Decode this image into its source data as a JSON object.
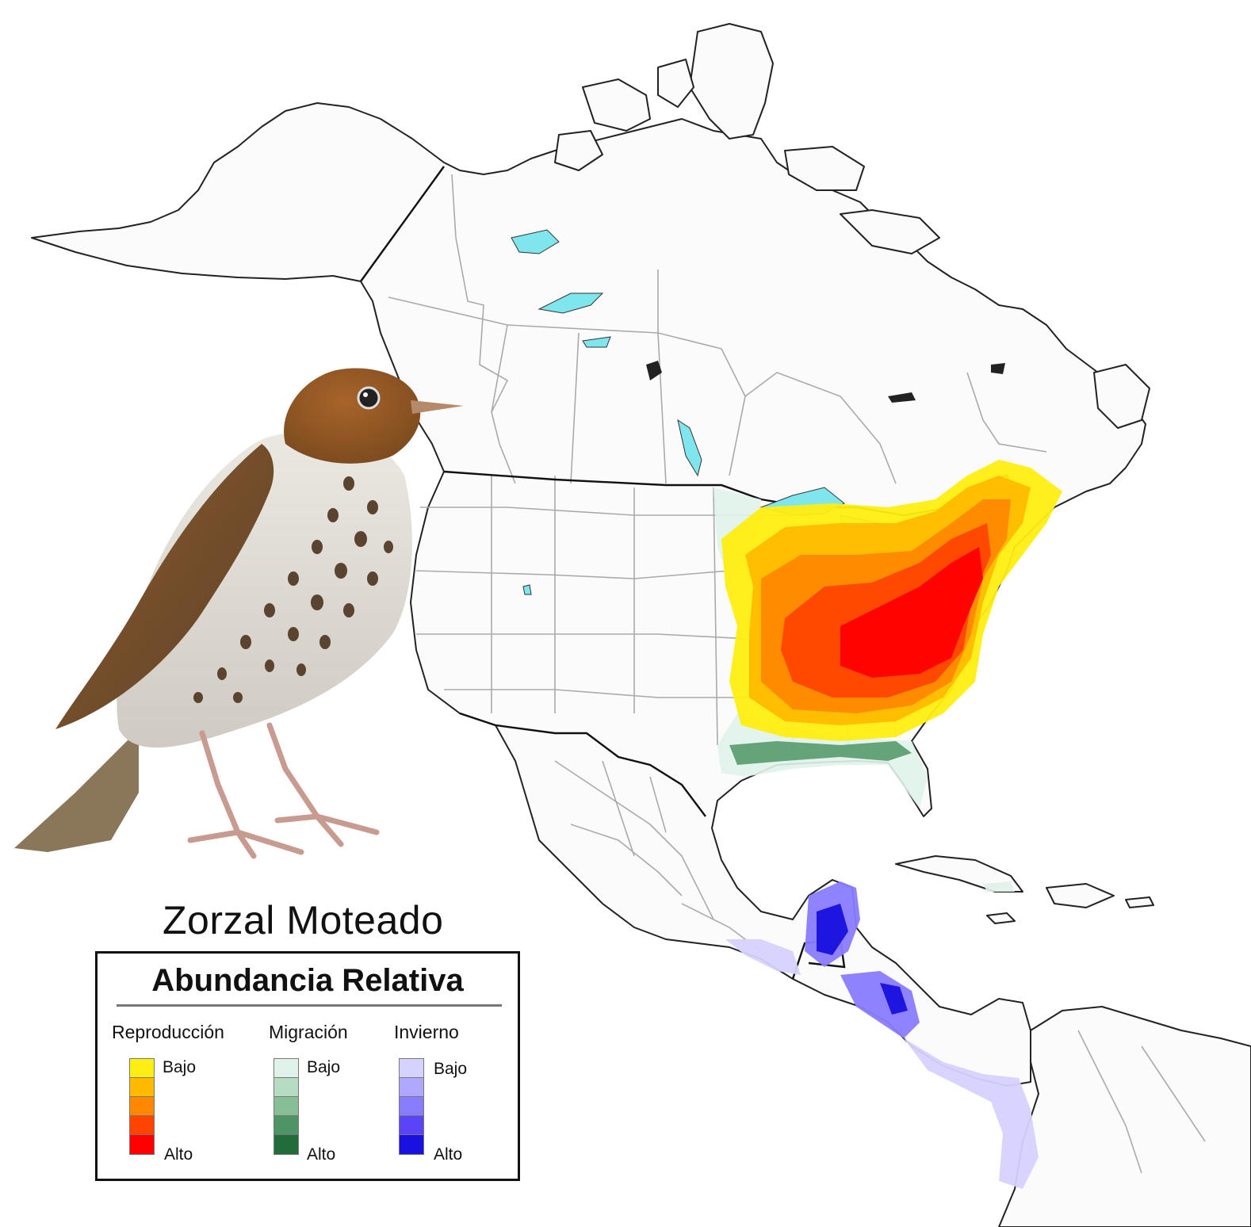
{
  "map": {
    "title": "Zorzal Moteado",
    "legend": {
      "title": "Abundancia Relativa",
      "low_label": "Bajo",
      "high_label": "Alto",
      "seasons": [
        {
          "id": "breeding",
          "name": "Reproducción",
          "colors": [
            "#ffee11",
            "#ffbb00",
            "#ff8800",
            "#ff4400",
            "#ff0000"
          ]
        },
        {
          "id": "migration",
          "name": "Migración",
          "colors": [
            "#dff3ea",
            "#b6dcc3",
            "#86bf95",
            "#4f9464",
            "#226b3a"
          ]
        },
        {
          "id": "wintering",
          "name": "Invierno",
          "colors": [
            "#d6d2ff",
            "#b0a8ff",
            "#8a7cff",
            "#5a44f6",
            "#1a10e0"
          ]
        }
      ]
    },
    "colors": {
      "land": "#fbfbfb",
      "coast": "#222222",
      "admin_border": "#aaaaaa",
      "country_border": "#111111",
      "water": "#7fe6ee"
    }
  }
}
